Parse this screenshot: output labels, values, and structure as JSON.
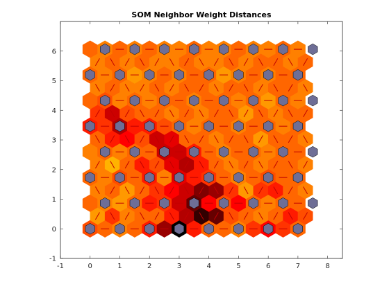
{
  "chart_data": {
    "type": "heatmap",
    "title": "SOM Neighbor Weight Distances",
    "xlabel": "",
    "ylabel": "",
    "xlim": [
      -1,
      8.5
    ],
    "ylim": [
      -1,
      7
    ],
    "x_ticks": [
      -1,
      0,
      1,
      2,
      3,
      4,
      5,
      6,
      7,
      8
    ],
    "y_ticks": [
      -1,
      0,
      1,
      2,
      3,
      4,
      5,
      6
    ],
    "grid": false,
    "neuron_color": "#6e6e96",
    "edge_color": "#c00000",
    "colormap": [
      "#000000",
      "#800000",
      "#ff0000",
      "#ff8000",
      "#ffff00"
    ],
    "neuron_rows": 8,
    "neuron_cols": 8,
    "distance_values": [
      [
        0.65,
        0.7,
        0.75,
        0.7,
        0.55,
        0.3,
        0.0,
        0.55,
        0.7,
        0.7,
        0.75,
        0.6,
        0.5,
        0.6,
        0.7
      ],
      [
        0.8,
        0.6,
        0.75,
        0.7,
        0.7,
        0.55,
        0.35,
        0.1,
        0.2,
        0.65,
        0.7,
        0.75,
        0.7,
        0.55,
        0.65
      ],
      [
        0.7,
        0.75,
        0.8,
        0.7,
        0.55,
        0.6,
        0.4,
        0.2,
        0.5,
        0.65,
        0.5,
        0.7,
        0.75,
        0.7,
        0.7
      ],
      [
        0.75,
        0.7,
        0.8,
        0.7,
        0.6,
        0.5,
        0.4,
        0.25,
        0.3,
        0.6,
        0.8,
        0.6,
        0.55,
        0.7,
        0.75
      ],
      [
        0.7,
        0.75,
        0.65,
        0.7,
        0.55,
        0.75,
        0.45,
        0.55,
        0.6,
        0.7,
        0.75,
        0.7,
        0.65,
        0.7,
        0.7
      ],
      [
        0.75,
        0.85,
        0.7,
        0.55,
        0.65,
        0.45,
        0.35,
        0.55,
        0.7,
        0.75,
        0.7,
        0.75,
        0.7,
        0.7,
        0.75
      ],
      [
        0.75,
        0.7,
        0.75,
        0.7,
        0.7,
        0.4,
        0.4,
        0.55,
        0.7,
        0.75,
        0.7,
        0.7,
        0.75,
        0.7,
        0.7
      ],
      [
        0.7,
        0.55,
        0.5,
        0.65,
        0.4,
        0.45,
        0.7,
        0.7,
        0.75,
        0.7,
        0.7,
        0.8,
        0.7,
        0.7,
        0.75
      ],
      [
        0.55,
        0.6,
        0.35,
        0.55,
        0.55,
        0.65,
        0.7,
        0.75,
        0.7,
        0.7,
        0.75,
        0.7,
        0.7,
        0.75,
        0.7
      ],
      [
        0.6,
        0.4,
        0.65,
        0.7,
        0.7,
        0.75,
        0.7,
        0.75,
        0.7,
        0.7,
        0.8,
        0.7,
        0.75,
        0.7,
        0.7
      ],
      [
        0.7,
        0.65,
        0.75,
        0.7,
        0.75,
        0.7,
        0.7,
        0.75,
        0.7,
        0.7,
        0.75,
        0.7,
        0.8,
        0.7,
        0.75
      ],
      [
        0.75,
        0.7,
        0.75,
        0.75,
        0.7,
        0.75,
        0.7,
        0.7,
        0.75,
        0.7,
        0.7,
        0.75,
        0.7,
        0.7,
        0.75
      ],
      [
        0.7,
        0.75,
        0.7,
        0.8,
        0.75,
        0.7,
        0.75,
        0.7,
        0.7,
        0.8,
        0.75,
        0.7,
        0.75,
        0.7,
        0.7
      ],
      [
        0.75,
        0.7,
        0.75,
        0.7,
        0.75,
        0.75,
        0.7,
        0.75,
        0.75,
        0.7,
        0.75,
        0.7,
        0.7,
        0.75,
        0.7
      ],
      [
        0.7,
        0.75,
        0.7,
        0.75,
        0.7,
        0.75,
        0.75,
        0.7,
        0.75,
        0.75,
        0.7,
        0.75,
        0.75,
        0.7,
        0.75
      ]
    ]
  }
}
